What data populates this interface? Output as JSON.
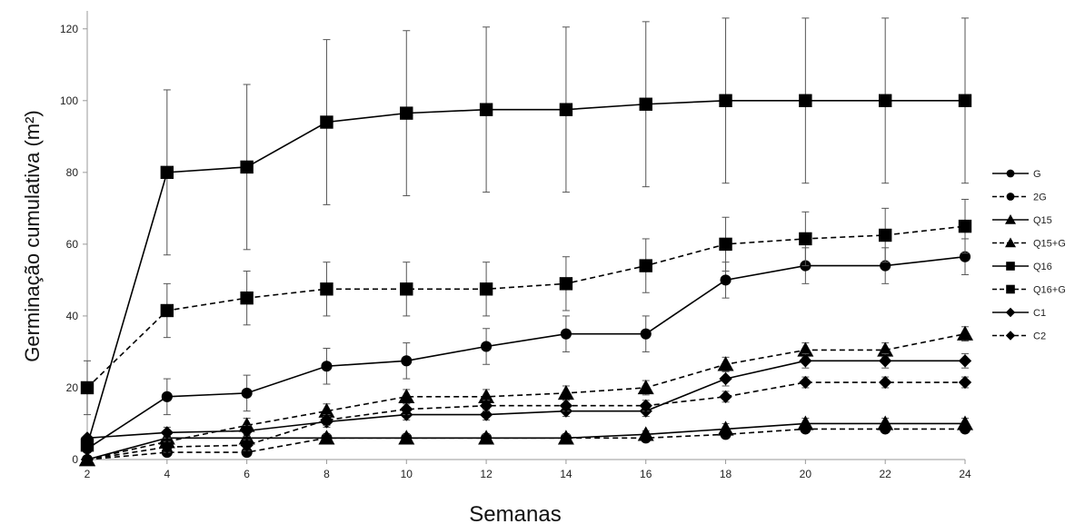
{
  "chart_data": {
    "type": "line",
    "title": "",
    "xlabel": "Semanas",
    "ylabel": "Germinação cumulativa (m²)",
    "x": [
      2,
      4,
      6,
      8,
      10,
      12,
      14,
      16,
      18,
      20,
      22,
      24
    ],
    "xlim": [
      2,
      24
    ],
    "ylim": [
      0,
      125
    ],
    "xticks": [
      2,
      4,
      6,
      8,
      10,
      12,
      14,
      16,
      18,
      20,
      22,
      24
    ],
    "yticks": [
      0,
      20,
      40,
      60,
      80,
      100,
      120
    ],
    "grid": false,
    "legend": "right",
    "series": [
      {
        "name": "G",
        "marker": "circle",
        "dashed": false,
        "values": [
          3,
          17.5,
          18.5,
          26,
          27.5,
          31.5,
          35,
          35,
          50,
          54,
          54,
          56.5
        ],
        "errors": [
          0,
          5,
          5,
          5,
          5,
          5,
          5,
          5,
          5,
          5,
          5,
          5
        ]
      },
      {
        "name": "2G",
        "marker": "circle",
        "dashed": true,
        "values": [
          0,
          2,
          2,
          6,
          6,
          6,
          6,
          6,
          7,
          8.5,
          8.5,
          8.5
        ],
        "errors": [
          0,
          1,
          1,
          1,
          1,
          1,
          1,
          1,
          1,
          1,
          1,
          1
        ]
      },
      {
        "name": "Q15",
        "marker": "triangle",
        "dashed": false,
        "values": [
          0,
          6,
          6,
          6,
          6,
          6,
          6,
          7,
          8.5,
          10,
          10,
          10
        ],
        "errors": [
          0,
          1,
          1,
          1,
          1,
          1,
          1,
          1,
          1.5,
          1.5,
          1.5,
          1.5
        ]
      },
      {
        "name": "Q15+G",
        "marker": "triangle",
        "dashed": true,
        "values": [
          0,
          5,
          9.5,
          13.5,
          17.5,
          17.5,
          18.5,
          20,
          26.5,
          30.5,
          30.5,
          35
        ],
        "errors": [
          0,
          2,
          2,
          2,
          2,
          2,
          2,
          2,
          2,
          2,
          2,
          2
        ]
      },
      {
        "name": "Q16",
        "marker": "square",
        "dashed": false,
        "values": [
          4,
          80,
          81.5,
          94,
          96.5,
          97.5,
          97.5,
          99,
          100,
          100,
          100,
          100
        ],
        "errors": [
          0,
          23,
          23,
          23,
          23,
          23,
          23,
          23,
          23,
          23,
          23,
          23
        ]
      },
      {
        "name": "Q16+G",
        "marker": "square",
        "dashed": true,
        "values": [
          20,
          41.5,
          45,
          47.5,
          47.5,
          47.5,
          49,
          54,
          60,
          61.5,
          62.5,
          65
        ],
        "errors": [
          7.5,
          7.5,
          7.5,
          7.5,
          7.5,
          7.5,
          7.5,
          7.5,
          7.5,
          7.5,
          7.5,
          7.5
        ]
      },
      {
        "name": "C1",
        "marker": "diamond",
        "dashed": false,
        "values": [
          6,
          7.5,
          8,
          10.5,
          12.5,
          12.5,
          13.5,
          13.5,
          22.5,
          27.5,
          27.5,
          27.5
        ],
        "errors": [
          0,
          1.5,
          1.5,
          1.5,
          1.5,
          1.5,
          1.5,
          1.5,
          2,
          2,
          2,
          2
        ]
      },
      {
        "name": "C2",
        "marker": "diamond",
        "dashed": true,
        "values": [
          0,
          3.5,
          4,
          11,
          14,
          15,
          15,
          15,
          17.5,
          21.5,
          21.5,
          21.5
        ],
        "errors": [
          0,
          1.5,
          1.5,
          1.5,
          1.5,
          1.5,
          1.5,
          1.5,
          1.5,
          1.5,
          1.5,
          1.5
        ]
      }
    ]
  }
}
